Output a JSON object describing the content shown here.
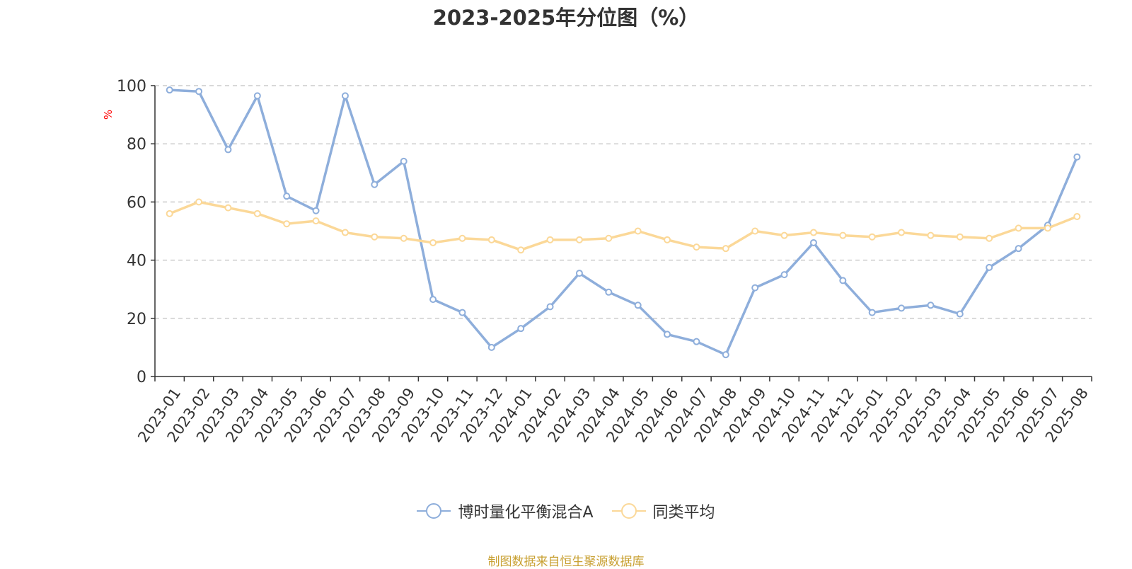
{
  "title": "2023-2025年分位图（%）",
  "source_note": "制图数据来自恒生聚源数据库",
  "colors": {
    "series_a": "#8eaedb",
    "series_b": "#fbd898",
    "ylabel": "#ff0000",
    "grid": "#cccccc",
    "axis": "#333333"
  },
  "chart_data": {
    "type": "line",
    "title": "2023-2025年分位图（%）",
    "ylabel": "%",
    "ylim": [
      0,
      100
    ],
    "yticks": [
      0,
      20,
      40,
      60,
      80,
      100
    ],
    "grid": "horizontal dashed",
    "legend_position": "bottom-center",
    "x": [
      "2023-01",
      "2023-02",
      "2023-03",
      "2023-04",
      "2023-05",
      "2023-06",
      "2023-07",
      "2023-08",
      "2023-09",
      "2023-10",
      "2023-11",
      "2023-12",
      "2024-01",
      "2024-02",
      "2024-03",
      "2024-04",
      "2024-05",
      "2024-06",
      "2024-07",
      "2024-08",
      "2024-09",
      "2024-10",
      "2024-11",
      "2024-12",
      "2025-01",
      "2025-02",
      "2025-03",
      "2025-04",
      "2025-05",
      "2025-06",
      "2025-07",
      "2025-08"
    ],
    "series": [
      {
        "name": "博时量化平衡混合A",
        "color": "#8eaedb",
        "values": [
          98.5,
          98,
          78,
          96.5,
          62,
          57,
          96.5,
          66,
          74,
          26.5,
          22,
          10,
          16.5,
          24,
          35.5,
          29,
          24.5,
          14.5,
          12,
          7.5,
          30.5,
          35,
          46,
          33,
          22,
          23.5,
          24.5,
          21.5,
          37.5,
          44,
          52,
          75.5
        ]
      },
      {
        "name": "同类平均",
        "color": "#fbd898",
        "values": [
          56,
          60,
          58,
          56,
          52.5,
          53.5,
          49.5,
          48,
          47.5,
          46,
          47.5,
          47,
          43.5,
          47,
          47,
          47.5,
          50,
          47,
          44.5,
          44,
          50,
          48.5,
          49.5,
          48.5,
          48,
          49.5,
          48.5,
          48,
          47.5,
          51,
          51,
          55
        ]
      }
    ]
  }
}
